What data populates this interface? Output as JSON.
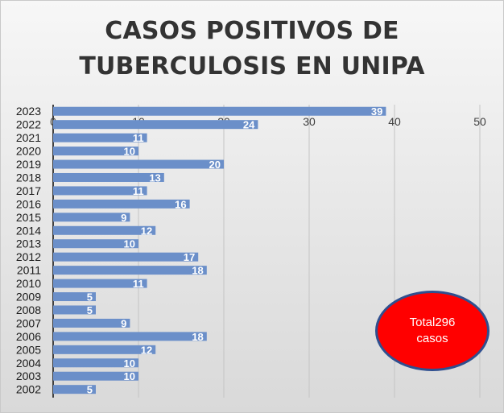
{
  "chart_data": {
    "type": "bar",
    "orientation": "horizontal",
    "title_lines": [
      "CASOS POSITIVOS DE",
      "TUBERCULOSIS EN UNIPA"
    ],
    "categories": [
      "2023",
      "2022",
      "2021",
      "2020",
      "2019",
      "2018",
      "2017",
      "2016",
      "2015",
      "2014",
      "2013",
      "2012",
      "2011",
      "2010",
      "2009",
      "2008",
      "2007",
      "2006",
      "2005",
      "2004",
      "2003",
      "2002"
    ],
    "values": [
      39,
      24,
      11,
      10,
      20,
      13,
      11,
      16,
      9,
      12,
      10,
      17,
      18,
      11,
      5,
      5,
      9,
      18,
      12,
      10,
      10,
      5
    ],
    "xlim": [
      0,
      50
    ],
    "x_ticks": [
      0,
      10,
      20,
      30,
      40,
      50
    ],
    "grid": "vertical",
    "bar_color": "#6b8fc9",
    "data_label_color": "#ffffff",
    "annotation": {
      "line1": "Total296",
      "line2": "casos",
      "fill": "#ff0000",
      "stroke": "#2f4f8f"
    }
  }
}
